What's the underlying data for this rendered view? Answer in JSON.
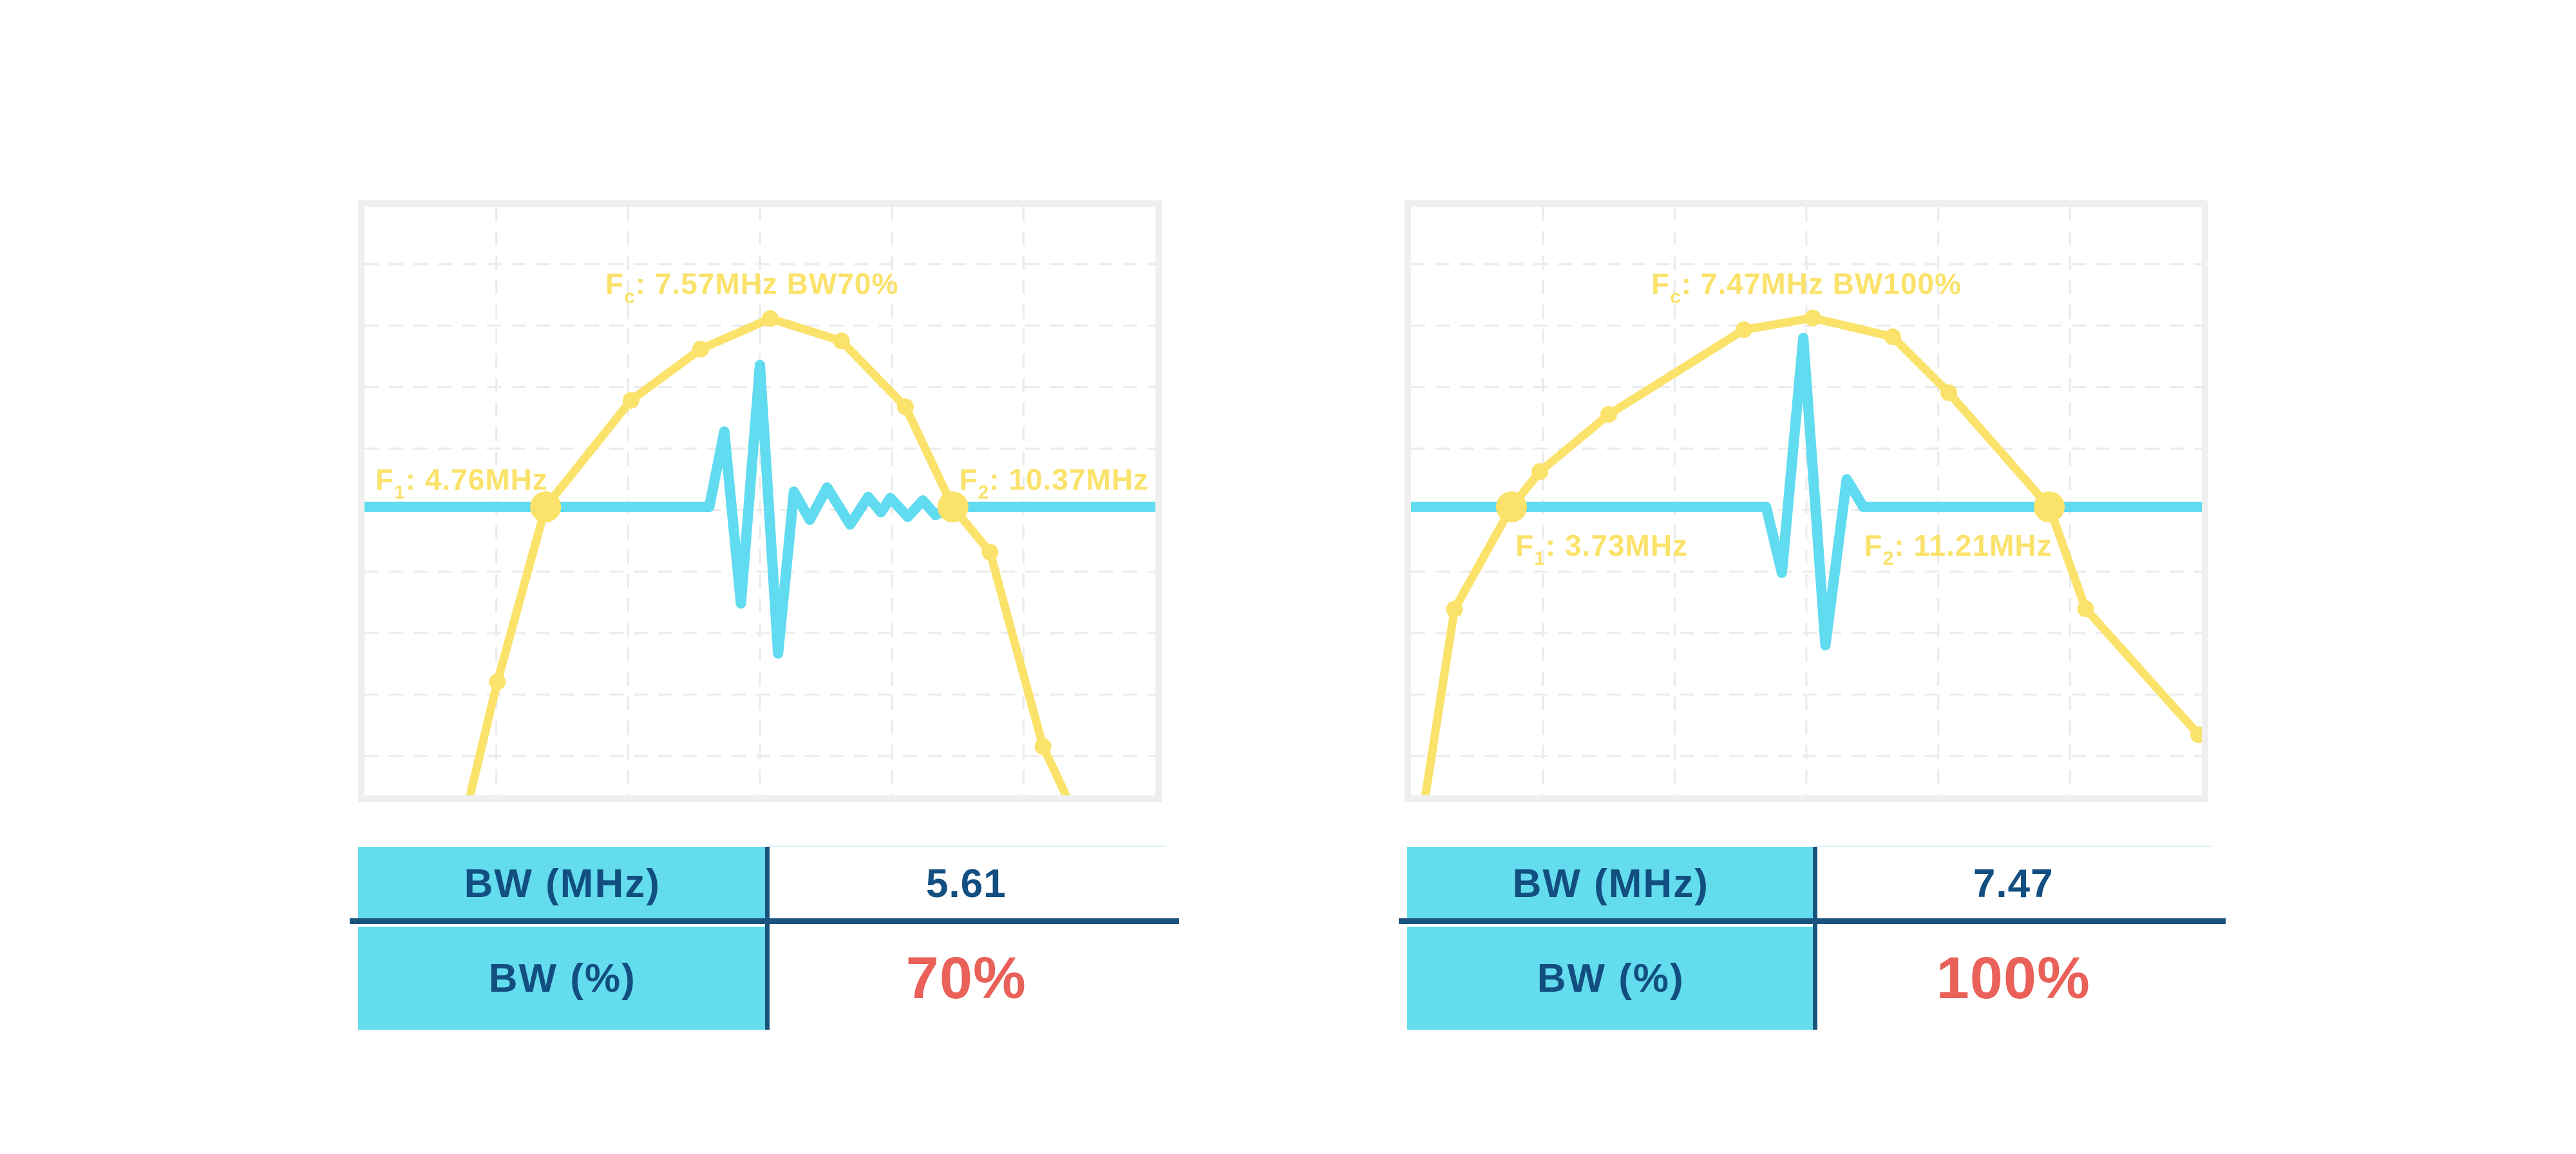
{
  "charts": [
    {
      "fc": {
        "f": "F",
        "sub": "c",
        "rest": ": 7.57MHz BW70%"
      },
      "f1": {
        "f": "F",
        "sub": "1",
        "rest": ": 4.76MHz"
      },
      "f2": {
        "f": "F",
        "sub": "2",
        "rest": ": 10.37MHz"
      },
      "table": {
        "row1_label": "BW (MHz)",
        "row1_value": "5.61",
        "row2_label": "BW (%)",
        "row2_value": "70%"
      }
    },
    {
      "fc": {
        "f": "F",
        "sub": "c",
        "rest": ": 7.47MHz BW100%"
      },
      "f1": {
        "f": "F",
        "sub": "1",
        "rest": ": 3.73MHz"
      },
      "f2": {
        "f": "F",
        "sub": "2",
        "rest": ": 11.21MHz"
      },
      "table": {
        "row1_label": "BW (MHz)",
        "row1_value": "7.47",
        "row2_label": "BW (%)",
        "row2_value": "100%"
      }
    }
  ],
  "colors": {
    "yellow": "#FAE26B",
    "cyan": "#60DBEF",
    "table_cyan": "#63DCEE",
    "navy": "#124E7F",
    "red": "#E96158",
    "frame": "#EFEFEF",
    "grid": "#EAEAEA"
  },
  "chart_data": [
    {
      "type": "line",
      "title": "Transducer pulse and spectrum, 70% bandwidth",
      "fc_mhz": 7.57,
      "f1_mhz": 4.76,
      "f2_mhz": 10.37,
      "bw_mhz": 5.61,
      "bw_pct": 70,
      "legend": "none",
      "grid_on": true,
      "baseline_frac": 0.51,
      "grid": {
        "v": [
          0.1667,
          0.3333,
          0.5,
          0.6667,
          0.8333
        ],
        "h": [
          0.0975,
          0.202,
          0.3065,
          0.411,
          0.5155,
          0.62,
          0.7245,
          0.829,
          0.9335
        ]
      },
      "spectrum": [
        [
          0.13,
          1.02,
          0
        ],
        [
          0.168,
          0.807,
          1
        ],
        [
          0.229,
          0.51,
          2
        ],
        [
          0.337,
          0.329,
          1
        ],
        [
          0.425,
          0.242,
          1
        ],
        [
          0.513,
          0.19,
          1
        ],
        [
          0.603,
          0.228,
          1
        ],
        [
          0.684,
          0.34,
          1
        ],
        [
          0.744,
          0.51,
          2
        ],
        [
          0.791,
          0.587,
          1
        ],
        [
          0.858,
          0.917,
          1
        ],
        [
          0.894,
          1.02,
          0
        ]
      ],
      "pulse": [
        [
          0,
          0.51
        ],
        [
          0.436,
          0.51
        ],
        [
          0.455,
          0.382
        ],
        [
          0.476,
          0.674
        ],
        [
          0.5,
          0.269
        ],
        [
          0.523,
          0.759
        ],
        [
          0.543,
          0.484
        ],
        [
          0.563,
          0.532
        ],
        [
          0.585,
          0.477
        ],
        [
          0.614,
          0.54
        ],
        [
          0.637,
          0.493
        ],
        [
          0.653,
          0.519
        ],
        [
          0.665,
          0.495
        ],
        [
          0.687,
          0.527
        ],
        [
          0.706,
          0.499
        ],
        [
          0.722,
          0.524
        ],
        [
          0.741,
          0.51
        ],
        [
          1,
          0.51
        ]
      ],
      "labels": {
        "fc": {
          "x": 0.49,
          "y": 0.148,
          "anchor": "middle"
        },
        "f1": {
          "x": 0.232,
          "y": 0.481,
          "anchor": "end"
        },
        "f2": {
          "x": 0.752,
          "y": 0.481,
          "anchor": "start"
        }
      }
    },
    {
      "type": "line",
      "title": "Transducer pulse and spectrum, 100% bandwidth",
      "fc_mhz": 7.47,
      "f1_mhz": 3.73,
      "f2_mhz": 11.21,
      "bw_mhz": 7.47,
      "bw_pct": 100,
      "legend": "none",
      "grid_on": true,
      "baseline_frac": 0.51,
      "grid": {
        "v": [
          0.1667,
          0.3333,
          0.5,
          0.6667,
          0.8333
        ],
        "h": [
          0.0975,
          0.202,
          0.3065,
          0.411,
          0.5155,
          0.62,
          0.7245,
          0.829,
          0.9335
        ]
      },
      "spectrum": [
        [
          0.016,
          1.02,
          0
        ],
        [
          0.055,
          0.684,
          1
        ],
        [
          0.127,
          0.51,
          2
        ],
        [
          0.163,
          0.45,
          1
        ],
        [
          0.25,
          0.353,
          1
        ],
        [
          0.421,
          0.209,
          1
        ],
        [
          0.508,
          0.189,
          1
        ],
        [
          0.609,
          0.221,
          1
        ],
        [
          0.68,
          0.316,
          1
        ],
        [
          0.807,
          0.51,
          2
        ],
        [
          0.853,
          0.683,
          1
        ],
        [
          0.996,
          0.897,
          1
        ]
      ],
      "pulse": [
        [
          0,
          0.51
        ],
        [
          0.449,
          0.51
        ],
        [
          0.469,
          0.622
        ],
        [
          0.496,
          0.223
        ],
        [
          0.524,
          0.745
        ],
        [
          0.551,
          0.463
        ],
        [
          0.572,
          0.51
        ],
        [
          1,
          0.51
        ]
      ],
      "labels": {
        "fc": {
          "x": 0.5,
          "y": 0.148,
          "anchor": "middle"
        },
        "f1": {
          "x": 0.132,
          "y": 0.593,
          "anchor": "start"
        },
        "f2": {
          "x": 0.573,
          "y": 0.593,
          "anchor": "start"
        }
      }
    }
  ]
}
